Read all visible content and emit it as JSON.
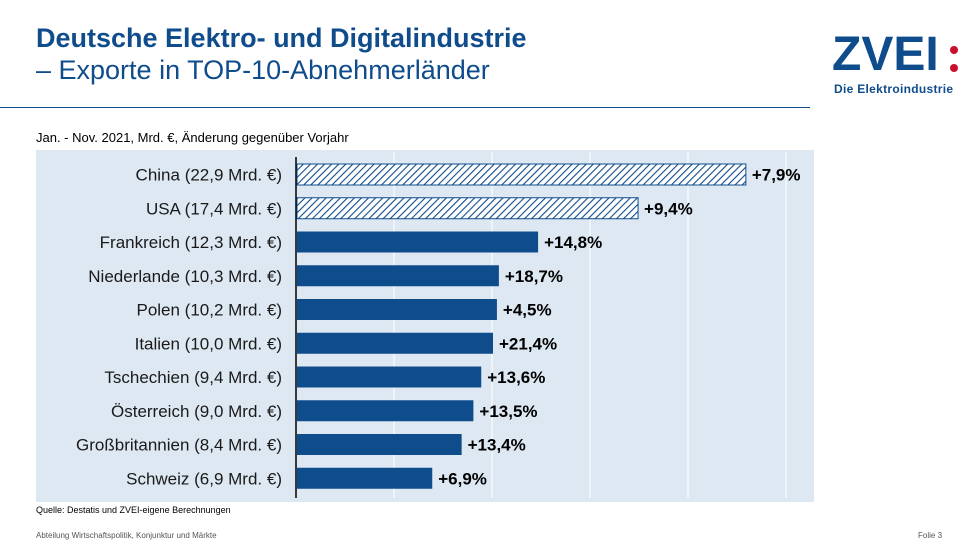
{
  "title": {
    "line1": "Deutsche Elektro- und Digitalindustrie",
    "line2": "– Exporte in TOP-10-Abnehmerländer"
  },
  "logo": {
    "mark": "ZVEI",
    "tagline": "Die Elektroindustrie",
    "color": "#0f4c8c",
    "accent": "#c8102e"
  },
  "subtitle": "Jan. - Nov. 2021, Mrd. €, Änderung  gegenüber  Vorjahr",
  "chart_data": {
    "type": "bar",
    "orientation": "horizontal",
    "categories": [
      "China (22,9 Mrd. €)",
      "USA (17,4 Mrd. €)",
      "Frankreich (12,3 Mrd. €)",
      "Niederlande (10,3 Mrd. €)",
      "Polen (10,2 Mrd. €)",
      "Italien (10,0 Mrd. €)",
      "Tschechien (9,4 Mrd. €)",
      "Österreich (9,0 Mrd. €)",
      "Großbritannien (8,4 Mrd. €)",
      "Schweiz (6,9 Mrd. €)"
    ],
    "values": [
      22.9,
      17.4,
      12.3,
      10.3,
      10.2,
      10.0,
      9.4,
      9.0,
      8.4,
      6.9
    ],
    "data_labels": [
      "+7,9%",
      "+9,4%",
      "+14,8%",
      "+18,7%",
      "+4,5%",
      "+21,4%",
      "+13,6%",
      "+13,5%",
      "+13,4%",
      "+6,9%"
    ],
    "hatched": [
      true,
      true,
      false,
      false,
      false,
      false,
      false,
      false,
      false,
      false
    ],
    "xlim": [
      0,
      25
    ],
    "grid_step": 5,
    "grid": true,
    "colors": {
      "bar": "#0f4c8c",
      "background": "#dde8f3",
      "grid": "#ffffff"
    }
  },
  "source": "Quelle: Destatis und ZVEI-eigene Berechnungen",
  "footer": "Abteilung Wirtschaftspolitik, Konjunktur und Märkte",
  "page": "Folie 3"
}
